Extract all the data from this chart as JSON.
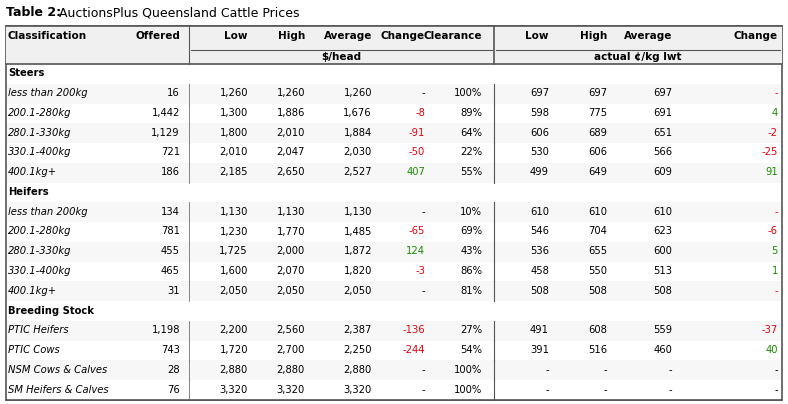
{
  "title_bold": "Table 2:",
  "title_normal": " AuctionsPlus Queensland Cattle Prices",
  "sections": [
    {
      "section_name": "Steers",
      "rows": [
        {
          "cls": "less than 200kg",
          "offered": "16",
          "low": "1,260",
          "high": "1,260",
          "avg": "1,260",
          "change": "-",
          "clear": "100%",
          "klow": "697",
          "khigh": "697",
          "kavg": "697",
          "kchange": "-",
          "change_color": "black",
          "kchange_color": "red"
        },
        {
          "cls": "200.1-280kg",
          "offered": "1,442",
          "low": "1,300",
          "high": "1,886",
          "avg": "1,676",
          "change": "-8",
          "clear": "89%",
          "klow": "598",
          "khigh": "775",
          "kavg": "691",
          "kchange": "4",
          "change_color": "red",
          "kchange_color": "green"
        },
        {
          "cls": "280.1-330kg",
          "offered": "1,129",
          "low": "1,800",
          "high": "2,010",
          "avg": "1,884",
          "change": "-91",
          "clear": "64%",
          "klow": "606",
          "khigh": "689",
          "kavg": "651",
          "kchange": "-2",
          "change_color": "red",
          "kchange_color": "red"
        },
        {
          "cls": "330.1-400kg",
          "offered": "721",
          "low": "2,010",
          "high": "2,047",
          "avg": "2,030",
          "change": "-50",
          "clear": "22%",
          "klow": "530",
          "khigh": "606",
          "kavg": "566",
          "kchange": "-25",
          "change_color": "red",
          "kchange_color": "red"
        },
        {
          "cls": "400.1kg+",
          "offered": "186",
          "low": "2,185",
          "high": "2,650",
          "avg": "2,527",
          "change": "407",
          "clear": "55%",
          "klow": "499",
          "khigh": "649",
          "kavg": "609",
          "kchange": "91",
          "change_color": "green",
          "kchange_color": "green"
        }
      ]
    },
    {
      "section_name": "Heifers",
      "rows": [
        {
          "cls": "less than 200kg",
          "offered": "134",
          "low": "1,130",
          "high": "1,130",
          "avg": "1,130",
          "change": "-",
          "clear": "10%",
          "klow": "610",
          "khigh": "610",
          "kavg": "610",
          "kchange": "-",
          "change_color": "black",
          "kchange_color": "red"
        },
        {
          "cls": "200.1-280kg",
          "offered": "781",
          "low": "1,230",
          "high": "1,770",
          "avg": "1,485",
          "change": "-65",
          "clear": "69%",
          "klow": "546",
          "khigh": "704",
          "kavg": "623",
          "kchange": "-6",
          "change_color": "red",
          "kchange_color": "red"
        },
        {
          "cls": "280.1-330kg",
          "offered": "455",
          "low": "1,725",
          "high": "2,000",
          "avg": "1,872",
          "change": "124",
          "clear": "43%",
          "klow": "536",
          "khigh": "655",
          "kavg": "600",
          "kchange": "5",
          "change_color": "green",
          "kchange_color": "green"
        },
        {
          "cls": "330.1-400kg",
          "offered": "465",
          "low": "1,600",
          "high": "2,070",
          "avg": "1,820",
          "change": "-3",
          "clear": "86%",
          "klow": "458",
          "khigh": "550",
          "kavg": "513",
          "kchange": "1",
          "change_color": "red",
          "kchange_color": "green"
        },
        {
          "cls": "400.1kg+",
          "offered": "31",
          "low": "2,050",
          "high": "2,050",
          "avg": "2,050",
          "change": "-",
          "clear": "81%",
          "klow": "508",
          "khigh": "508",
          "kavg": "508",
          "kchange": "-",
          "change_color": "black",
          "kchange_color": "red"
        }
      ]
    },
    {
      "section_name": "Breeding Stock",
      "rows": [
        {
          "cls": "PTIC Heifers",
          "offered": "1,198",
          "low": "2,200",
          "high": "2,560",
          "avg": "2,387",
          "change": "-136",
          "clear": "27%",
          "klow": "491",
          "khigh": "608",
          "kavg": "559",
          "kchange": "-37",
          "change_color": "red",
          "kchange_color": "red"
        },
        {
          "cls": "PTIC Cows",
          "offered": "743",
          "low": "1,720",
          "high": "2,700",
          "avg": "2,250",
          "change": "-244",
          "clear": "54%",
          "klow": "391",
          "khigh": "516",
          "kavg": "460",
          "kchange": "40",
          "change_color": "red",
          "kchange_color": "green"
        },
        {
          "cls": "NSM Cows & Calves",
          "offered": "28",
          "low": "2,880",
          "high": "2,880",
          "avg": "2,880",
          "change": "-",
          "clear": "100%",
          "klow": "-",
          "khigh": "-",
          "kavg": "-",
          "kchange": "-",
          "change_color": "black",
          "kchange_color": "black"
        },
        {
          "cls": "SM Heifers & Calves",
          "offered": "76",
          "low": "3,320",
          "high": "3,320",
          "avg": "3,320",
          "change": "-",
          "clear": "100%",
          "klow": "-",
          "khigh": "-",
          "kavg": "-",
          "kchange": "-",
          "change_color": "black",
          "kchange_color": "black"
        }
      ]
    }
  ],
  "border_color": "#555555",
  "red": "#e8000d",
  "green": "#1a8c00",
  "fig_w": 7.88,
  "fig_h": 4.04,
  "dpi": 100
}
